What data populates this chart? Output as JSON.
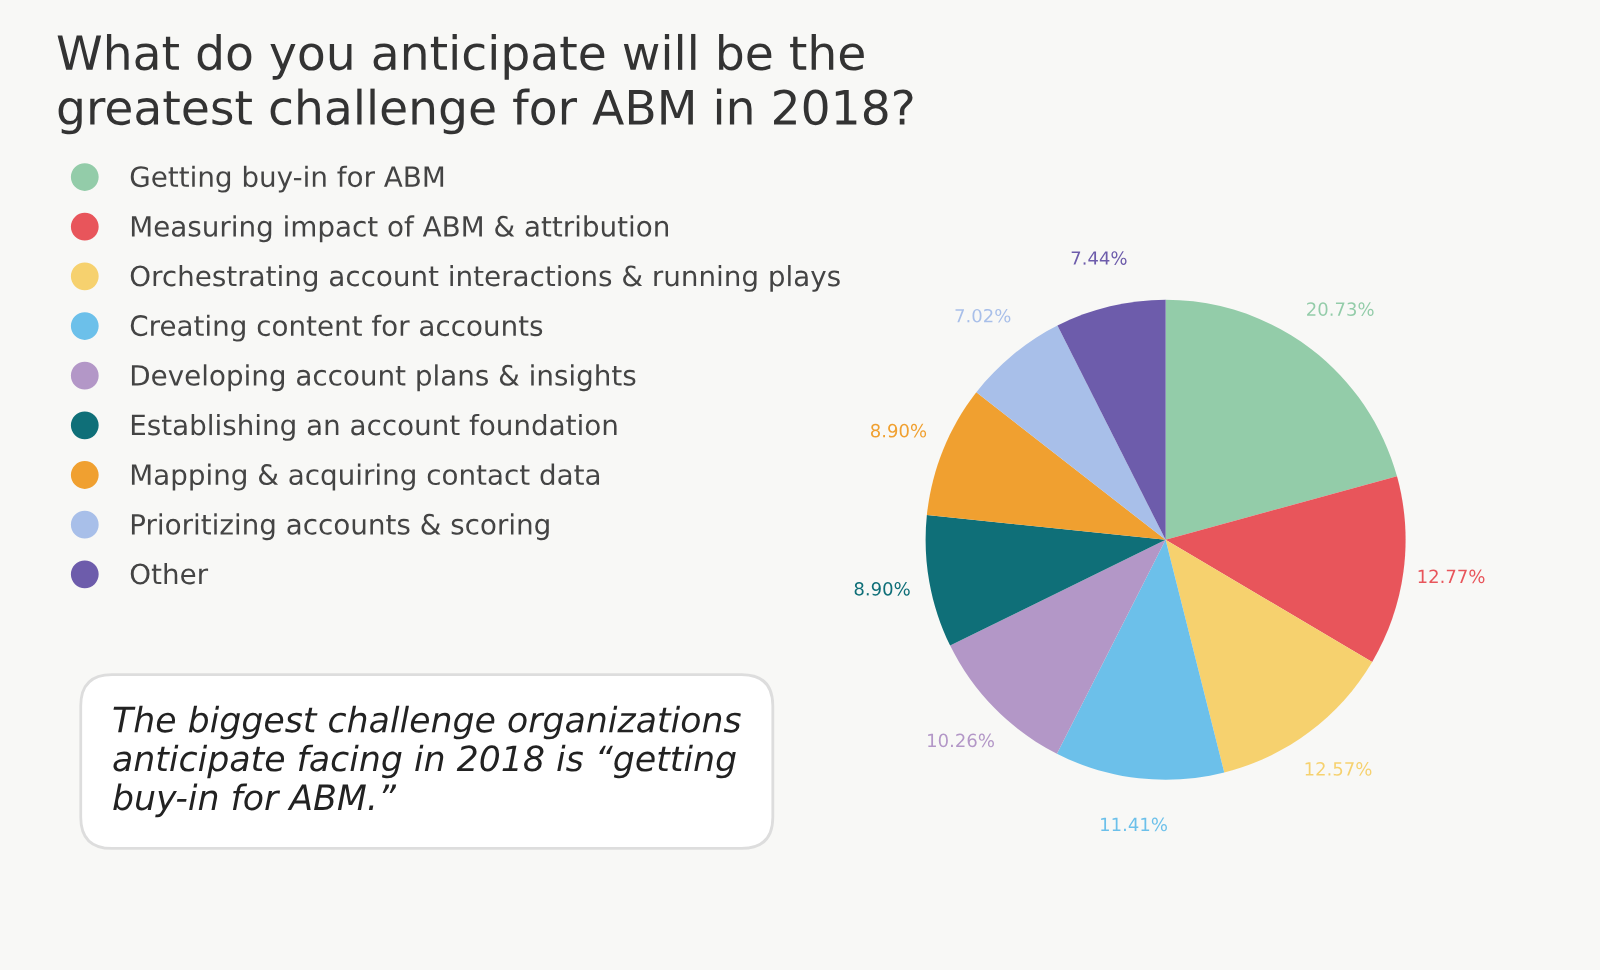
{
  "chart_data": {
    "type": "pie",
    "title": "What do you anticipate will be the\ngreatest challenge for ABM in 2018?",
    "categories": [
      "Getting buy-in for ABM",
      "Measuring impact of ABM & attribution",
      "Orchestrating account interactions & running plays",
      "Creating content for accounts",
      "Developing account plans & insights",
      "Establishing an account foundation",
      "Mapping & acquiring contact data",
      "Prioritizing accounts & scoring",
      "Other"
    ],
    "values": [
      20.73,
      12.77,
      12.57,
      11.41,
      10.26,
      8.9,
      8.9,
      7.02,
      7.44
    ],
    "value_labels": [
      "20.73%",
      "12.77%",
      "12.57%",
      "11.41%",
      "10.26%",
      "8.90%",
      "8.90%",
      "7.02%",
      "7.44%"
    ],
    "colors": [
      "#93cca9",
      "#e8555b",
      "#f6d16e",
      "#6cc0ea",
      "#b397c7",
      "#0f6f78",
      "#f0a030",
      "#a8bfe9",
      "#6d5cab"
    ],
    "legend": "left",
    "annotations": [
      "The biggest challenge organizations\nanticipate facing in 2018 is “getting\nbuy-in for ABM.”"
    ]
  }
}
